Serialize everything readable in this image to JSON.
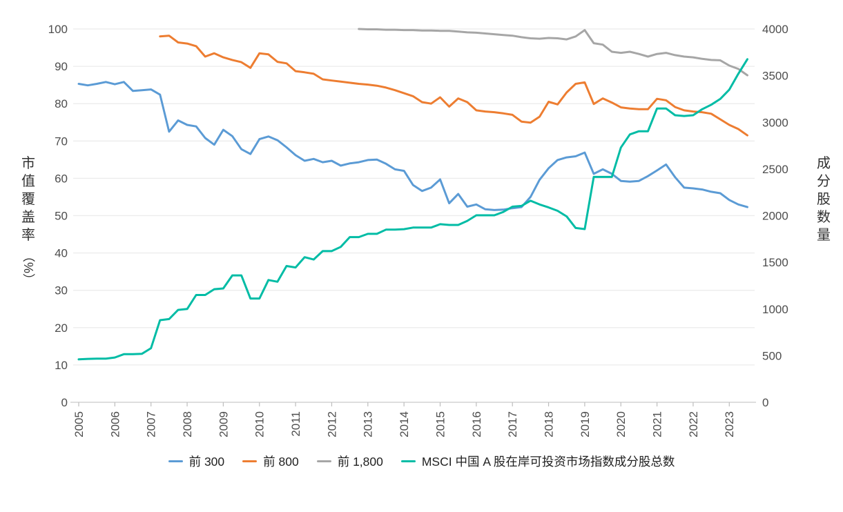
{
  "chart_data": {
    "type": "line",
    "title": "",
    "frequency": "quarterly",
    "x_start": "2005Q1",
    "x_end": "2023Q3",
    "grid": "horizontal",
    "x_axis": {
      "tick_labels": [
        "2005",
        "2006",
        "2007",
        "2008",
        "2009",
        "2010",
        "2011",
        "2012",
        "2013",
        "2014",
        "2015",
        "2016",
        "2017",
        "2018",
        "2019",
        "2020",
        "2021",
        "2022",
        "2023"
      ]
    },
    "axes": {
      "left": {
        "title": "市值覆盖率（%）",
        "min": 0,
        "max": 100,
        "step": 10,
        "ticks": [
          0,
          10,
          20,
          30,
          40,
          50,
          60,
          70,
          80,
          90,
          100
        ]
      },
      "right": {
        "title": "成分股数量",
        "min": 0,
        "max": 4000,
        "step": 500,
        "ticks": [
          0,
          500,
          1000,
          1500,
          2000,
          2500,
          3000,
          3500,
          4000
        ]
      }
    },
    "legend_position": "bottom",
    "series": [
      {
        "key": "top300",
        "name": "前 300",
        "axis": "left",
        "color": "#5B9BD5",
        "values": [
          85.3,
          84.9,
          85.3,
          85.8,
          85.2,
          85.8,
          83.4,
          83.6,
          83.8,
          82.4,
          72.5,
          75.5,
          74.3,
          73.9,
          70.8,
          69.0,
          73.0,
          71.3,
          67.8,
          66.5,
          70.5,
          71.2,
          70.2,
          68.3,
          66.2,
          64.7,
          65.2,
          64.3,
          64.7,
          63.4,
          64.0,
          64.3,
          64.9,
          65.0,
          63.9,
          62.4,
          62.0,
          58.2,
          56.6,
          57.5,
          59.7,
          53.3,
          55.8,
          52.4,
          53.0,
          51.7,
          51.5,
          51.6,
          52.0,
          52.3,
          55.0,
          59.6,
          62.7,
          64.9,
          65.6,
          65.9,
          66.9,
          61.2,
          62.4,
          61.2,
          59.3,
          59.1,
          59.3,
          60.6,
          62.1,
          63.7,
          60.3,
          57.5,
          57.3,
          57.0,
          56.4,
          56.0,
          54.2,
          53.0,
          52.3
        ]
      },
      {
        "key": "top800",
        "name": "前 800",
        "axis": "left",
        "color": "#ED7D31",
        "values": [
          null,
          null,
          null,
          null,
          null,
          null,
          null,
          null,
          null,
          98.0,
          98.2,
          96.4,
          96.1,
          95.4,
          92.6,
          93.5,
          92.4,
          91.7,
          91.1,
          89.6,
          93.5,
          93.2,
          91.2,
          90.8,
          88.7,
          88.4,
          88.0,
          86.5,
          86.2,
          85.9,
          85.6,
          85.3,
          85.1,
          84.8,
          84.3,
          83.6,
          82.8,
          82.0,
          80.4,
          80.0,
          81.7,
          79.2,
          81.4,
          80.4,
          78.2,
          77.9,
          77.7,
          77.4,
          77.0,
          75.2,
          74.9,
          76.5,
          80.5,
          79.8,
          83.0,
          85.3,
          85.7,
          79.9,
          81.4,
          80.3,
          79.0,
          78.7,
          78.5,
          78.5,
          81.3,
          80.9,
          79.1,
          78.2,
          77.9,
          77.7,
          77.3,
          75.8,
          74.3,
          73.2,
          71.5
        ]
      },
      {
        "key": "top1800",
        "name": "前 1,800",
        "axis": "left",
        "color": "#A6A6A6",
        "values": [
          null,
          null,
          null,
          null,
          null,
          null,
          null,
          null,
          null,
          null,
          null,
          null,
          null,
          null,
          null,
          null,
          null,
          null,
          null,
          null,
          null,
          null,
          null,
          null,
          null,
          null,
          null,
          null,
          null,
          null,
          null,
          100.0,
          99.9,
          99.9,
          99.8,
          99.8,
          99.7,
          99.7,
          99.6,
          99.6,
          99.5,
          99.5,
          99.3,
          99.1,
          99.0,
          98.8,
          98.6,
          98.4,
          98.2,
          97.8,
          97.5,
          97.4,
          97.6,
          97.5,
          97.2,
          98.0,
          99.7,
          96.2,
          95.8,
          93.9,
          93.6,
          93.9,
          93.3,
          92.6,
          93.3,
          93.6,
          93.0,
          92.6,
          92.4,
          92.0,
          91.7,
          91.6,
          90.2,
          89.3,
          87.6
        ]
      },
      {
        "key": "msci-constituents",
        "name": "MSCI 中国 A 股在岸可投资市场指数成分股总数",
        "axis": "right",
        "color": "#00BCA5",
        "values": [
          460,
          465,
          468,
          468,
          480,
          515,
          515,
          520,
          580,
          880,
          892,
          990,
          1000,
          1150,
          1150,
          1212,
          1220,
          1360,
          1360,
          1112,
          1112,
          1310,
          1292,
          1460,
          1445,
          1555,
          1530,
          1620,
          1620,
          1665,
          1770,
          1770,
          1805,
          1805,
          1850,
          1850,
          1855,
          1872,
          1872,
          1872,
          1908,
          1900,
          1900,
          1944,
          2004,
          2004,
          2004,
          2040,
          2096,
          2104,
          2160,
          2120,
          2088,
          2052,
          1992,
          1868,
          1856,
          2415,
          2415,
          2415,
          2730,
          2870,
          2904,
          2904,
          3148,
          3148,
          3076,
          3068,
          3076,
          3140,
          3188,
          3250,
          3350,
          3520,
          3676
        ]
      }
    ]
  },
  "colors": {
    "background": "#ffffff",
    "gridline": "#EBEBEB",
    "axis_line": "#CBCBCB",
    "tick_mark": "#BDBDBD",
    "tick_label": "#4D4D4D",
    "axis_title": "#303030",
    "legend_text": "#212121"
  }
}
